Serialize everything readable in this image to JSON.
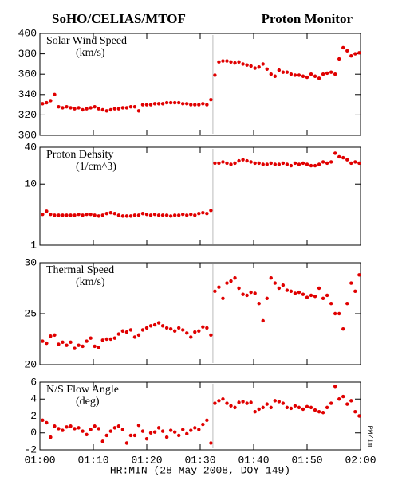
{
  "title": "SoHO/CELIAS/MTOF",
  "subtitle": "Proton Monitor",
  "xlabel": "HR:MIN (28 May 2008, DOY 149)",
  "side_label": "PM/1m",
  "chart_data": [
    {
      "type": "scatter",
      "label": "Solar Wind Speed",
      "unit": "(km/s)",
      "color": "#e00000",
      "x": [
        0.5,
        1.25,
        2,
        2.75,
        3.5,
        4.25,
        5,
        5.75,
        6.5,
        7.25,
        8,
        8.75,
        9.5,
        10.25,
        11,
        11.75,
        12.5,
        13.25,
        14,
        14.75,
        15.5,
        16.25,
        17,
        17.75,
        18.5,
        19.25,
        20,
        20.75,
        21.5,
        22.25,
        23,
        23.75,
        24.5,
        25.25,
        26,
        26.75,
        27.5,
        28.25,
        29,
        29.75,
        30.5,
        31.25,
        32,
        32.75,
        33.5,
        34.25,
        35,
        35.75,
        36.5,
        37.25,
        38,
        38.75,
        39.5,
        40.25,
        41,
        41.75,
        42.5,
        43.25,
        44,
        44.75,
        45.5,
        46.25,
        47,
        47.75,
        48.5,
        49.25,
        50,
        50.75,
        51.5,
        52.25,
        53,
        53.75,
        54.5,
        55.25,
        56,
        56.75,
        57.5,
        58.25,
        59,
        59.75
      ],
      "values": [
        331,
        332,
        334,
        340,
        328,
        327,
        328,
        327,
        326,
        327,
        325,
        326,
        327,
        328,
        326,
        325,
        324,
        325,
        326,
        326,
        327,
        327,
        328,
        328,
        324,
        330,
        330,
        330,
        331,
        331,
        331,
        332,
        332,
        332,
        332,
        331,
        331,
        330,
        330,
        330,
        331,
        330,
        335,
        359,
        372,
        373,
        373,
        372,
        371,
        372,
        370,
        369,
        368,
        366,
        367,
        370,
        365,
        360,
        358,
        364,
        362,
        362,
        360,
        359,
        359,
        358,
        357,
        360,
        358,
        356,
        360,
        361,
        362,
        360,
        375,
        386,
        383,
        378,
        380,
        381
      ],
      "xlim": [
        0,
        60
      ],
      "xticks": [
        0,
        10,
        20,
        30,
        40,
        50,
        60
      ],
      "ylim": [
        300,
        400
      ],
      "yticks": [
        300,
        320,
        340,
        360,
        380,
        400
      ]
    },
    {
      "type": "scatter",
      "label": "Proton Density",
      "unit": "(1/cm^3)",
      "color": "#e00000",
      "log_y": true,
      "x": [
        0.5,
        1.25,
        2,
        2.75,
        3.5,
        4.25,
        5,
        5.75,
        6.5,
        7.25,
        8,
        8.75,
        9.5,
        10.25,
        11,
        11.75,
        12.5,
        13.25,
        14,
        14.75,
        15.5,
        16.25,
        17,
        17.75,
        18.5,
        19.25,
        20,
        20.75,
        21.5,
        22.25,
        23,
        23.75,
        24.5,
        25.25,
        26,
        26.75,
        27.5,
        28.25,
        29,
        29.75,
        30.5,
        31.25,
        32,
        32.75,
        33.5,
        34.25,
        35,
        35.75,
        36.5,
        37.25,
        38,
        38.75,
        39.5,
        40.25,
        41,
        41.75,
        42.5,
        43.25,
        44,
        44.75,
        45.5,
        46.25,
        47,
        47.75,
        48.5,
        49.25,
        50,
        50.75,
        51.5,
        52.25,
        53,
        53.75,
        54.5,
        55.25,
        56,
        56.75,
        57.5,
        58.25,
        59,
        59.75
      ],
      "values": [
        3.2,
        3.6,
        3.2,
        3.1,
        3.1,
        3.1,
        3.1,
        3.1,
        3.1,
        3.2,
        3.1,
        3.2,
        3.2,
        3.1,
        3.0,
        3.1,
        3.3,
        3.4,
        3.3,
        3.1,
        3.0,
        3.0,
        3.0,
        3.1,
        3.1,
        3.3,
        3.2,
        3.1,
        3.2,
        3.1,
        3.1,
        3.1,
        3.0,
        3.1,
        3.1,
        3.2,
        3.1,
        3.2,
        3.1,
        3.3,
        3.4,
        3.3,
        3.7,
        22,
        22,
        23,
        22,
        21,
        22,
        24,
        25,
        24,
        23,
        22,
        22,
        21,
        21,
        22,
        21,
        21,
        22,
        21,
        20,
        22,
        21,
        22,
        21,
        20,
        20,
        21,
        23,
        22,
        23,
        32,
        28,
        27,
        25,
        22,
        23,
        22
      ],
      "xlim": [
        0,
        60
      ],
      "xticks": [
        0,
        10,
        20,
        30,
        40,
        50,
        60
      ],
      "ylim": [
        1,
        40
      ],
      "yticks": [
        1,
        10,
        40
      ]
    },
    {
      "type": "scatter",
      "label": "Thermal Speed",
      "unit": "(km/s)",
      "color": "#e00000",
      "x": [
        0.5,
        1.25,
        2,
        2.75,
        3.5,
        4.25,
        5,
        5.75,
        6.5,
        7.25,
        8,
        8.75,
        9.5,
        10.25,
        11,
        11.75,
        12.5,
        13.25,
        14,
        14.75,
        15.5,
        16.25,
        17,
        17.75,
        18.5,
        19.25,
        20,
        20.75,
        21.5,
        22.25,
        23,
        23.75,
        24.5,
        25.25,
        26,
        26.75,
        27.5,
        28.25,
        29,
        29.75,
        30.5,
        31.25,
        32,
        32.75,
        33.5,
        34.25,
        35,
        35.75,
        36.5,
        37.25,
        38,
        38.75,
        39.5,
        40.25,
        41,
        41.75,
        42.5,
        43.25,
        44,
        44.75,
        45.5,
        46.25,
        47,
        47.75,
        48.5,
        49.25,
        50,
        50.75,
        51.5,
        52.25,
        53,
        53.75,
        54.5,
        55.25,
        56,
        56.75,
        57.5,
        58.25,
        59,
        59.75
      ],
      "values": [
        22.3,
        22.1,
        22.8,
        22.9,
        22.0,
        22.2,
        21.9,
        22.2,
        21.6,
        21.9,
        21.8,
        22.3,
        22.6,
        21.8,
        21.7,
        22.4,
        22.5,
        22.5,
        22.6,
        23.0,
        23.3,
        23.2,
        23.4,
        22.7,
        22.9,
        23.4,
        23.6,
        23.8,
        23.9,
        24.1,
        23.8,
        23.6,
        23.5,
        23.3,
        23.6,
        23.4,
        23.1,
        22.7,
        23.2,
        23.3,
        23.7,
        23.6,
        22.9,
        27.2,
        27.6,
        26.5,
        28.0,
        28.2,
        28.5,
        27.5,
        26.9,
        26.8,
        27.1,
        27.0,
        26.0,
        24.3,
        26.5,
        28.5,
        28.0,
        27.5,
        27.8,
        27.3,
        27.2,
        27.0,
        27.1,
        26.9,
        26.6,
        26.8,
        26.7,
        27.5,
        26.5,
        26.8,
        26.0,
        25.0,
        25.0,
        23.5,
        26.0,
        28.0,
        27.2,
        28.8
      ],
      "xlim": [
        0,
        60
      ],
      "xticks": [
        0,
        10,
        20,
        30,
        40,
        50,
        60
      ],
      "ylim": [
        20,
        30
      ],
      "yticks": [
        20,
        25,
        30
      ]
    },
    {
      "type": "scatter",
      "label": "N/S Flow Angle",
      "unit": "(deg)",
      "color": "#e00000",
      "x": [
        0.5,
        1.25,
        2,
        2.75,
        3.5,
        4.25,
        5,
        5.75,
        6.5,
        7.25,
        8,
        8.75,
        9.5,
        10.25,
        11,
        11.75,
        12.5,
        13.25,
        14,
        14.75,
        15.5,
        16.25,
        17,
        17.75,
        18.5,
        19.25,
        20,
        20.75,
        21.5,
        22.25,
        23,
        23.75,
        24.5,
        25.25,
        26,
        26.75,
        27.5,
        28.25,
        29,
        29.75,
        30.5,
        31.25,
        32,
        32.75,
        33.5,
        34.25,
        35,
        35.75,
        36.5,
        37.25,
        38,
        38.75,
        39.5,
        40.25,
        41,
        41.75,
        42.5,
        43.25,
        44,
        44.75,
        45.5,
        46.25,
        47,
        47.75,
        48.5,
        49.25,
        50,
        50.75,
        51.5,
        52.25,
        53,
        53.75,
        54.5,
        55.25,
        56,
        56.75,
        57.5,
        58.25,
        59,
        59.75
      ],
      "values": [
        1.5,
        1.2,
        -0.5,
        0.8,
        0.5,
        0.3,
        0.7,
        0.8,
        0.5,
        0.6,
        0.2,
        -0.2,
        0.4,
        0.8,
        0.5,
        -1.0,
        -0.3,
        0.2,
        0.6,
        0.8,
        0.4,
        -1.2,
        -0.3,
        -0.3,
        0.9,
        0.2,
        -0.7,
        0.0,
        0.1,
        0.6,
        0.2,
        -0.5,
        0.3,
        0.1,
        -0.3,
        0.4,
        -0.1,
        0.3,
        0.6,
        0.4,
        1.0,
        1.5,
        -1.2,
        3.5,
        3.8,
        4.0,
        3.5,
        3.2,
        3.0,
        3.6,
        3.7,
        3.5,
        3.6,
        2.5,
        2.8,
        3.0,
        3.4,
        3.0,
        3.8,
        3.7,
        3.5,
        3.0,
        2.9,
        3.2,
        3.0,
        2.8,
        3.1,
        3.0,
        2.7,
        2.5,
        2.4,
        3.0,
        3.5,
        5.5,
        4.0,
        4.3,
        3.4,
        3.8,
        2.5,
        2.0
      ],
      "xlim": [
        0,
        60
      ],
      "xticks": [
        {
          "value": 0,
          "label": "01:00"
        },
        {
          "value": 10,
          "label": "01:10"
        },
        {
          "value": 20,
          "label": "01:20"
        },
        {
          "value": 30,
          "label": "01:30"
        },
        {
          "value": 40,
          "label": "01:40"
        },
        {
          "value": 50,
          "label": "01:50"
        },
        {
          "value": 60,
          "label": "02:00"
        }
      ],
      "ylim": [
        -2,
        6
      ],
      "yticks": [
        -2,
        0,
        2,
        4,
        6
      ]
    }
  ]
}
